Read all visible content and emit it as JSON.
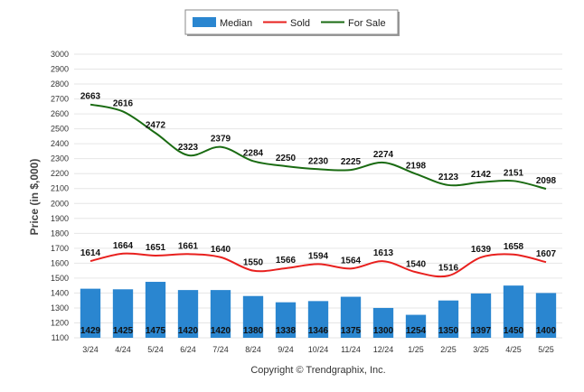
{
  "chart_data": {
    "type": "bar",
    "categories": [
      "3/24",
      "4/24",
      "5/24",
      "6/24",
      "7/24",
      "8/24",
      "9/24",
      "10/24",
      "11/24",
      "12/24",
      "1/25",
      "2/25",
      "3/25",
      "4/25",
      "5/25"
    ],
    "series": [
      {
        "name": "Median",
        "kind": "bar",
        "color": "#2a86d0",
        "values": [
          1429,
          1425,
          1475,
          1420,
          1420,
          1380,
          1338,
          1346,
          1375,
          1300,
          1254,
          1350,
          1397,
          1450,
          1400
        ]
      },
      {
        "name": "Sold",
        "kind": "line",
        "color": "#e8201e",
        "values": [
          1614,
          1664,
          1651,
          1661,
          1640,
          1550,
          1566,
          1594,
          1564,
          1613,
          1540,
          1516,
          1639,
          1658,
          1607
        ]
      },
      {
        "name": "For Sale",
        "kind": "line",
        "color": "#1a6b12",
        "values": [
          2663,
          2616,
          2472,
          2323,
          2379,
          2284,
          2250,
          2230,
          2225,
          2274,
          2198,
          2123,
          2142,
          2151,
          2098
        ]
      }
    ],
    "ylabel": "Price (in $,000)",
    "ylim": [
      1100,
      3000
    ],
    "yticks": [
      1100,
      1200,
      1300,
      1400,
      1500,
      1600,
      1700,
      1800,
      1900,
      2000,
      2100,
      2200,
      2300,
      2400,
      2500,
      2600,
      2700,
      2800,
      2900,
      3000
    ],
    "grid": true,
    "legend": "top-center"
  },
  "footer": {
    "copyright": "Copyright © Trendgraphix, Inc."
  }
}
